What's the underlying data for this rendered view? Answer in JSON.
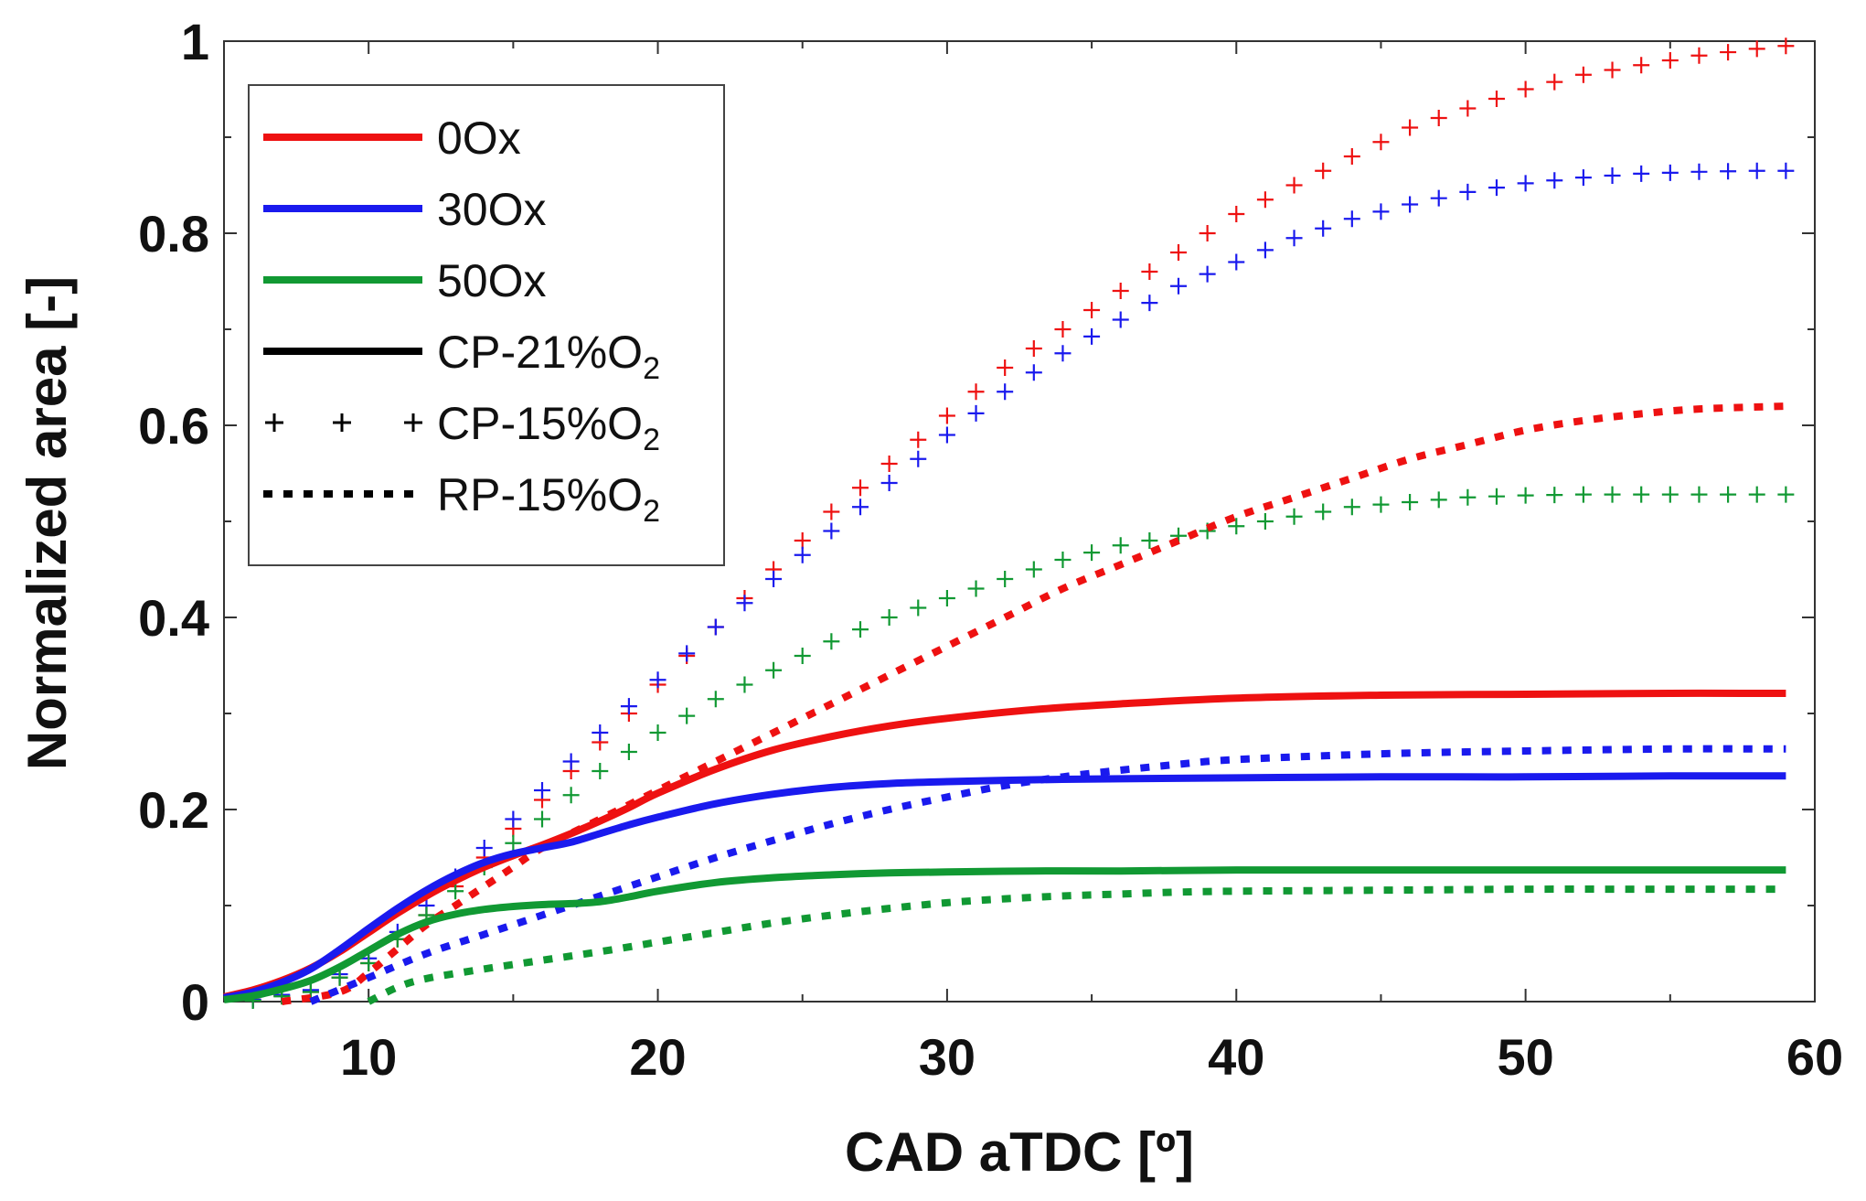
{
  "chart_data": {
    "type": "line",
    "title": "",
    "xlabel": "CAD aTDC [º]",
    "ylabel": "Normalized area [-]",
    "xlim": [
      5,
      60
    ],
    "ylim": [
      0,
      1
    ],
    "x_ticks": [
      10,
      20,
      30,
      40,
      50,
      60
    ],
    "x_tick_labels": [
      "10",
      "20",
      "30",
      "40",
      "50",
      "60"
    ],
    "y_ticks": [
      0,
      0.2,
      0.4,
      0.6,
      0.8,
      1
    ],
    "y_tick_labels": [
      "0",
      "0.2",
      "0.4",
      "0.6",
      "0.8",
      "1"
    ],
    "grid": false,
    "legend_position": "top-left",
    "legend": [
      {
        "label": "0Ox",
        "sub": "",
        "tail": "",
        "style": "solid",
        "color": "#ee1111"
      },
      {
        "label": "30Ox",
        "sub": "",
        "tail": "",
        "style": "solid",
        "color": "#1a1aee"
      },
      {
        "label": "50Ox",
        "sub": "",
        "tail": "",
        "style": "solid",
        "color": "#119933"
      },
      {
        "label": "CP-21%O",
        "sub": "2",
        "tail": "",
        "style": "solid",
        "color": "#000000"
      },
      {
        "label": "CP-15%O",
        "sub": "2",
        "tail": "",
        "style": "plus",
        "color": "#000000"
      },
      {
        "label": "RP-15%O",
        "sub": "2",
        "tail": "",
        "style": "dotted",
        "color": "#000000"
      }
    ],
    "series": [
      {
        "name": "0Ox CP-21%O2",
        "color": "#ee1111",
        "style": "solid",
        "x": [
          5,
          6,
          7,
          8,
          9,
          10,
          11,
          12,
          13,
          14,
          15,
          16,
          17,
          18,
          19,
          20,
          22,
          24,
          26,
          28,
          30,
          33,
          36,
          40,
          45,
          50,
          55,
          59
        ],
        "y": [
          0.005,
          0.012,
          0.022,
          0.035,
          0.052,
          0.072,
          0.092,
          0.11,
          0.126,
          0.14,
          0.152,
          0.163,
          0.175,
          0.188,
          0.202,
          0.217,
          0.242,
          0.262,
          0.276,
          0.287,
          0.295,
          0.304,
          0.31,
          0.316,
          0.319,
          0.32,
          0.321,
          0.321
        ]
      },
      {
        "name": "30Ox CP-21%O2",
        "color": "#1a1aee",
        "style": "solid",
        "x": [
          5,
          6,
          7,
          8,
          9,
          10,
          11,
          12,
          13,
          14,
          15,
          16,
          17,
          18,
          19,
          20,
          22,
          24,
          26,
          28,
          30,
          33,
          36,
          40,
          45,
          50,
          55,
          59
        ],
        "y": [
          0.004,
          0.01,
          0.02,
          0.034,
          0.054,
          0.076,
          0.097,
          0.116,
          0.132,
          0.145,
          0.154,
          0.16,
          0.166,
          0.175,
          0.184,
          0.192,
          0.206,
          0.216,
          0.223,
          0.227,
          0.229,
          0.231,
          0.232,
          0.233,
          0.234,
          0.234,
          0.235,
          0.235
        ]
      },
      {
        "name": "50Ox CP-21%O2",
        "color": "#119933",
        "style": "solid",
        "x": [
          5,
          6,
          7,
          8,
          9,
          10,
          11,
          12,
          13,
          14,
          15,
          16,
          17,
          18,
          19,
          20,
          22,
          24,
          26,
          28,
          30,
          33,
          36,
          40,
          45,
          50,
          55,
          59
        ],
        "y": [
          0.002,
          0.006,
          0.013,
          0.022,
          0.036,
          0.053,
          0.07,
          0.083,
          0.091,
          0.096,
          0.099,
          0.101,
          0.102,
          0.104,
          0.109,
          0.115,
          0.124,
          0.129,
          0.132,
          0.134,
          0.135,
          0.136,
          0.136,
          0.137,
          0.137,
          0.137,
          0.137,
          0.137
        ]
      },
      {
        "name": "0Ox CP-15%O2",
        "color": "#ee1111",
        "style": "plus",
        "x": [
          6,
          8,
          10,
          12,
          14,
          16,
          18,
          20,
          22,
          24,
          26,
          28,
          30,
          32,
          34,
          36,
          38,
          40,
          42,
          44,
          46,
          48,
          50,
          52,
          54,
          56,
          58,
          59
        ],
        "y": [
          0.002,
          0.01,
          0.04,
          0.09,
          0.15,
          0.21,
          0.27,
          0.33,
          0.39,
          0.45,
          0.51,
          0.56,
          0.61,
          0.66,
          0.7,
          0.74,
          0.78,
          0.82,
          0.85,
          0.88,
          0.91,
          0.93,
          0.95,
          0.965,
          0.975,
          0.985,
          0.992,
          0.995
        ]
      },
      {
        "name": "30Ox CP-15%O2",
        "color": "#1a1aee",
        "style": "plus",
        "x": [
          6,
          8,
          10,
          12,
          14,
          16,
          18,
          20,
          22,
          24,
          26,
          28,
          30,
          32,
          34,
          36,
          38,
          40,
          42,
          44,
          46,
          48,
          50,
          52,
          54,
          56,
          58,
          59
        ],
        "y": [
          0.002,
          0.012,
          0.045,
          0.1,
          0.16,
          0.22,
          0.28,
          0.335,
          0.39,
          0.44,
          0.49,
          0.54,
          0.59,
          0.635,
          0.675,
          0.71,
          0.745,
          0.77,
          0.795,
          0.815,
          0.83,
          0.843,
          0.852,
          0.858,
          0.862,
          0.864,
          0.865,
          0.865
        ]
      },
      {
        "name": "50Ox CP-15%O2",
        "color": "#119933",
        "style": "plus",
        "x": [
          6,
          8,
          10,
          12,
          14,
          16,
          18,
          20,
          22,
          24,
          26,
          28,
          30,
          32,
          34,
          36,
          38,
          40,
          42,
          44,
          46,
          48,
          50,
          52,
          54,
          56,
          58,
          59
        ],
        "y": [
          0.001,
          0.01,
          0.04,
          0.09,
          0.14,
          0.19,
          0.24,
          0.28,
          0.315,
          0.345,
          0.375,
          0.4,
          0.42,
          0.44,
          0.46,
          0.475,
          0.485,
          0.495,
          0.505,
          0.515,
          0.52,
          0.525,
          0.527,
          0.528,
          0.528,
          0.528,
          0.528,
          0.528
        ]
      },
      {
        "name": "0Ox RP-15%O2",
        "color": "#ee1111",
        "style": "dotted",
        "x": [
          7,
          9,
          10,
          11,
          12,
          13,
          14,
          15,
          16,
          18,
          20,
          22,
          24,
          26,
          28,
          30,
          32,
          34,
          36,
          38,
          40,
          42,
          44,
          46,
          48,
          50,
          52,
          54,
          56,
          59
        ],
        "y": [
          0.0,
          0.01,
          0.03,
          0.055,
          0.08,
          0.1,
          0.12,
          0.14,
          0.16,
          0.19,
          0.22,
          0.25,
          0.28,
          0.31,
          0.34,
          0.37,
          0.4,
          0.43,
          0.455,
          0.48,
          0.505,
          0.525,
          0.545,
          0.565,
          0.58,
          0.595,
          0.605,
          0.612,
          0.617,
          0.62
        ]
      },
      {
        "name": "30Ox RP-15%O2",
        "color": "#1a1aee",
        "style": "dotted",
        "x": [
          8,
          10,
          12,
          14,
          16,
          18,
          20,
          22,
          24,
          26,
          28,
          30,
          32,
          34,
          36,
          38,
          40,
          45,
          50,
          55,
          59
        ],
        "y": [
          0.0,
          0.025,
          0.05,
          0.07,
          0.09,
          0.11,
          0.13,
          0.15,
          0.168,
          0.185,
          0.2,
          0.213,
          0.225,
          0.234,
          0.241,
          0.247,
          0.252,
          0.258,
          0.261,
          0.263,
          0.263
        ]
      },
      {
        "name": "50Ox RP-15%O2",
        "color": "#119933",
        "style": "dotted",
        "x": [
          10,
          11,
          12,
          14,
          16,
          18,
          20,
          22,
          24,
          26,
          28,
          30,
          32,
          34,
          36,
          38,
          40,
          45,
          50,
          55,
          59
        ],
        "y": [
          0.0,
          0.015,
          0.024,
          0.034,
          0.043,
          0.052,
          0.062,
          0.072,
          0.082,
          0.09,
          0.097,
          0.103,
          0.107,
          0.11,
          0.112,
          0.114,
          0.115,
          0.116,
          0.117,
          0.117,
          0.117
        ]
      }
    ]
  }
}
